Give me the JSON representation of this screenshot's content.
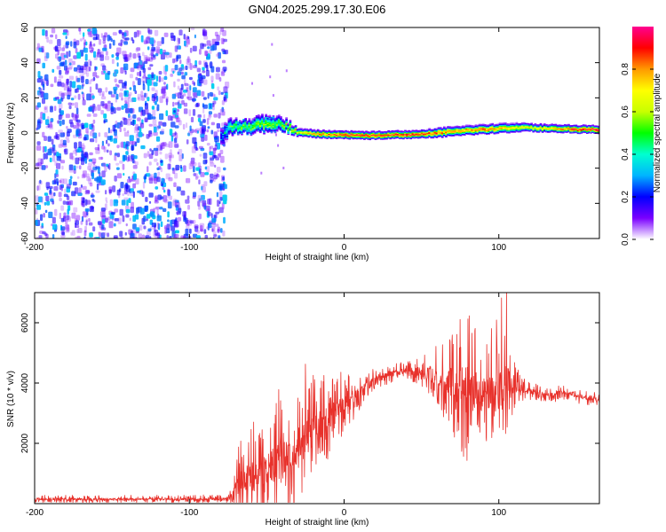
{
  "page": {
    "title": "GN04.2025.299.17.30.E06"
  },
  "colors": {
    "snr_line": "#e8312b",
    "sparse_speckle": "#6a1fd8",
    "axis": "#000000"
  },
  "colorbar": {
    "label": "Normalized spectral amplitude",
    "ticks": [
      "0.0",
      "0.2",
      "0.4",
      "0.6",
      "0.8"
    ],
    "tick_values": [
      0.0,
      0.2,
      0.4,
      0.6,
      0.8
    ],
    "range": [
      0,
      1
    ],
    "colormap": [
      "#ffffff",
      "#7a00ff",
      "#0000ff",
      "#00b4ff",
      "#00ffd0",
      "#00ff00",
      "#c8ff00",
      "#ffff00",
      "#ff9900",
      "#ff0000",
      "#ff0090"
    ]
  },
  "chart_data": [
    {
      "type": "heatmap",
      "xlabel": "Height of straight line (km)",
      "ylabel": "Frequency (Hz)",
      "xlim": [
        -200,
        165
      ],
      "ylim": [
        -60,
        60
      ],
      "x_ticks": [
        -200,
        -100,
        0,
        100
      ],
      "x_tick_labels": [
        "-200",
        "-100",
        "0",
        "100"
      ],
      "y_ticks": [
        -60,
        -40,
        -20,
        0,
        20,
        40,
        60
      ],
      "y_tick_labels": [
        "-60",
        "-40",
        "-20",
        "0",
        "20",
        "40",
        "60"
      ],
      "noise_region_x": [
        -200,
        -80
      ],
      "ridge": {
        "x": [
          -80,
          -75,
          -70,
          -65,
          -60,
          -55,
          -50,
          -45,
          -40,
          -35,
          -30,
          -25,
          -20,
          -10,
          0,
          10,
          20,
          30,
          40,
          50,
          60,
          70,
          80,
          90,
          100,
          110,
          120,
          130,
          140,
          150,
          165
        ],
        "center_freq": [
          -2,
          3,
          3.5,
          3.5,
          4,
          4.5,
          5,
          5.5,
          4.5,
          2.5,
          0.5,
          0,
          -0.5,
          -1,
          -1,
          -1.5,
          -1.5,
          -1,
          -1,
          -0.5,
          0,
          1,
          1.5,
          2,
          2.5,
          3,
          3,
          2.5,
          2.5,
          2,
          2
        ],
        "half_width": [
          8,
          6,
          5,
          5,
          5.5,
          6,
          6,
          5.5,
          4.5,
          3.5,
          2.5,
          2.5,
          2.5,
          2.5,
          2.5,
          2.5,
          2.5,
          2.5,
          2.5,
          2.5,
          3,
          3,
          3,
          3,
          3,
          3,
          2.5,
          2.5,
          2.5,
          2.5,
          2.5
        ],
        "peak_amplitude": [
          0.2,
          0.4,
          0.5,
          0.5,
          0.5,
          0.55,
          0.55,
          0.5,
          0.55,
          0.6,
          0.7,
          0.75,
          0.8,
          0.85,
          0.9,
          0.9,
          0.9,
          0.9,
          0.95,
          0.9,
          0.85,
          0.8,
          0.8,
          0.85,
          0.8,
          0.7,
          0.7,
          0.75,
          0.85,
          0.95,
          0.95
        ]
      }
    },
    {
      "type": "line",
      "xlabel": "Height of straight line (km)",
      "ylabel": "SNR (10 * v/v)",
      "xlim": [
        -200,
        165
      ],
      "ylim": [
        0,
        7000
      ],
      "x_ticks": [
        -200,
        -100,
        0,
        100
      ],
      "x_tick_labels": [
        "-200",
        "-100",
        "0",
        "100"
      ],
      "y_ticks": [
        2000,
        4000,
        6000
      ],
      "y_tick_labels": [
        "2000",
        "4000",
        "6000"
      ],
      "series": [
        {
          "name": "SNR",
          "x": [
            -200,
            -150,
            -100,
            -75,
            -72,
            -68,
            -60,
            -55,
            -50,
            -45,
            -40,
            -35,
            -30,
            -25,
            -20,
            -15,
            -10,
            -5,
            0,
            5,
            10,
            15,
            20,
            25,
            30,
            35,
            40,
            45,
            50,
            55,
            60,
            65,
            70,
            75,
            80,
            85,
            90,
            95,
            100,
            105,
            110,
            115,
            120,
            125,
            130,
            135,
            140,
            145,
            150,
            155,
            160,
            165
          ],
          "envelope": [
            150,
            150,
            150,
            150,
            300,
            700,
            900,
            1100,
            1200,
            1300,
            1500,
            1700,
            1900,
            2200,
            2400,
            2600,
            2800,
            3100,
            3300,
            3500,
            3700,
            3900,
            4100,
            4200,
            4300,
            4350,
            4400,
            4400,
            4400,
            4300,
            4200,
            4100,
            4000,
            3900,
            3800,
            3700,
            3600,
            3700,
            3800,
            3900,
            3900,
            3800,
            3700,
            3700,
            3600,
            3600,
            3700,
            3700,
            3600,
            3500,
            3500,
            3400
          ],
          "spread": [
            120,
            120,
            120,
            150,
            300,
            1300,
            1500,
            1800,
            1800,
            2000,
            2300,
            2200,
            2000,
            1900,
            1800,
            1600,
            1300,
            1100,
            1000,
            800,
            600,
            500,
            400,
            300,
            300,
            300,
            300,
            400,
            500,
            700,
            1000,
            1400,
            1800,
            2200,
            2500,
            2000,
            1800,
            2000,
            2200,
            2500,
            800,
            400,
            300,
            250,
            250,
            250,
            250,
            250,
            250,
            250,
            250,
            250
          ]
        }
      ]
    }
  ]
}
